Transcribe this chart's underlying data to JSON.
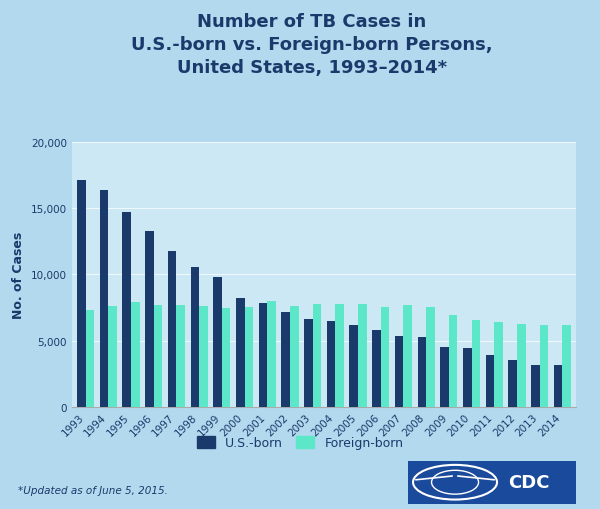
{
  "title": "Number of TB Cases in\nU.S.-born vs. Foreign-born Persons,\nUnited States, 1993–2014*",
  "ylabel": "No. of Cases",
  "footnote": "*Updated as of June 5, 2015.",
  "years": [
    1993,
    1994,
    1995,
    1996,
    1997,
    1998,
    1999,
    2000,
    2001,
    2002,
    2003,
    2004,
    2005,
    2006,
    2007,
    2008,
    2009,
    2010,
    2011,
    2012,
    2013,
    2014
  ],
  "us_born": [
    17154,
    16377,
    14732,
    13256,
    11738,
    10535,
    9768,
    8221,
    7834,
    7185,
    6618,
    6509,
    6221,
    5838,
    5368,
    5247,
    4514,
    4456,
    3898,
    3555,
    3142,
    3188
  ],
  "foreign_born": [
    7279,
    7622,
    7936,
    7659,
    7702,
    7591,
    7439,
    7530,
    8003,
    7588,
    7802,
    7788,
    7791,
    7554,
    7722,
    7520,
    6961,
    6562,
    6413,
    6280,
    6189,
    6215
  ],
  "us_born_color": "#1a3a6b",
  "foreign_born_color": "#5ce8c8",
  "background_outer": "#b3d9ee",
  "background_inner": "#cce8f5",
  "title_color": "#1a3a6b",
  "axis_color": "#1a3a6b",
  "tick_color": "#1a3a6b",
  "ylim": [
    0,
    20000
  ],
  "yticks": [
    0,
    5000,
    10000,
    15000,
    20000
  ],
  "legend_us": "U.S.-born",
  "legend_foreign": "Foreign-born",
  "title_fontsize": 13,
  "axis_label_fontsize": 9,
  "tick_fontsize": 7.5,
  "legend_fontsize": 9,
  "ray_colors": [
    "#c0e0f0",
    "#d0ecf8"
  ]
}
